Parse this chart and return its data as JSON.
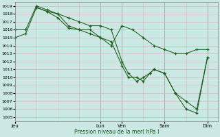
{
  "bg_color": "#cce8e4",
  "grid_minor_color": "#d4b8b8",
  "grid_major_color": "#999999",
  "line_color": "#1a5c1a",
  "ylabel": "Pression niveau de la mer( hPa )",
  "ylim": [
    1004.5,
    1019.5
  ],
  "yticks": [
    1005,
    1006,
    1007,
    1008,
    1009,
    1010,
    1011,
    1012,
    1013,
    1014,
    1015,
    1016,
    1017,
    1018,
    1019
  ],
  "xtick_labels": [
    "Jeu",
    "Lun",
    "Ven",
    "Sam",
    "Dim"
  ],
  "xtick_positions": [
    0,
    40,
    50,
    70,
    90
  ],
  "xlim": [
    0,
    95
  ],
  "line1_x": [
    0,
    5,
    10,
    15,
    20,
    25,
    30,
    35,
    40,
    45,
    50,
    55,
    60,
    65,
    70,
    75,
    80,
    85,
    90
  ],
  "line1_y": [
    1016,
    1016,
    1019,
    1018.5,
    1018,
    1016.5,
    1016,
    1016,
    1015,
    1014,
    1016.5,
    1016,
    1015,
    1014,
    1013.5,
    1013,
    1013,
    1013.5,
    1013.5
  ],
  "line2_x": [
    0,
    5,
    10,
    15,
    20,
    25,
    30,
    35,
    40,
    45,
    50,
    53,
    57,
    60,
    63,
    65,
    70,
    75,
    80,
    85,
    90
  ],
  "line2_y": [
    1015,
    1015.5,
    1018.8,
    1018.3,
    1017.5,
    1016.2,
    1016,
    1015.5,
    1015,
    1014.5,
    1011.5,
    1010,
    1010,
    1009.5,
    1010.5,
    1011,
    1010.5,
    1008,
    1007,
    1006,
    1012.5
  ],
  "line3_x": [
    10,
    15,
    20,
    25,
    30,
    35,
    40,
    45,
    50,
    53,
    57,
    60,
    63,
    65,
    70,
    75,
    80,
    85,
    90
  ],
  "line3_y": [
    1018.8,
    1018.3,
    1018,
    1017.5,
    1017,
    1016.5,
    1016.5,
    1016,
    1012,
    1010.5,
    1009.5,
    1010,
    1010.5,
    1011,
    1010.5,
    1008,
    1006,
    1005.5,
    1012.5
  ]
}
